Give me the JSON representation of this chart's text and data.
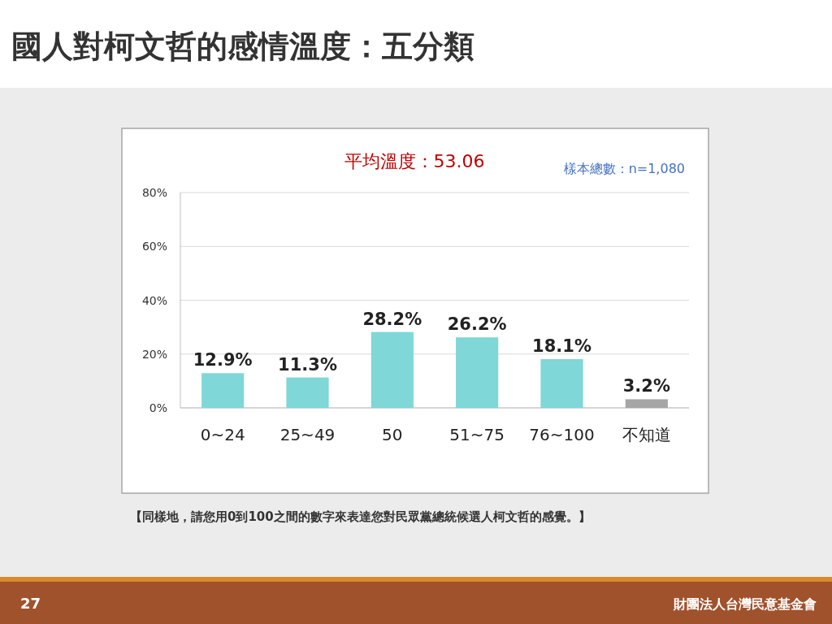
{
  "chart_data": {
    "type": "bar",
    "title": "國人對柯文哲的感情溫度：五分類",
    "subtitle": "平均溫度：53.06",
    "annotations": [
      "樣本總數：n=1,080",
      "【同樣地，請您用0到100之間的數字來表達您對民眾黨總統候選人柯文哲的感覺。】",
      "27",
      "財團法人台灣民意基金會"
    ],
    "categories": [
      "0~24",
      "25~49",
      "50",
      "51~75",
      "76~100",
      "不知道"
    ],
    "values": [
      12.9,
      11.3,
      28.2,
      26.2,
      18.1,
      3.2
    ],
    "colors": [
      "#7fd7d7",
      "#7fd7d7",
      "#7fd7d7",
      "#7fd7d7",
      "#7fd7d7",
      "#a6a6a6"
    ],
    "value_labels": [
      "12.9%",
      "11.3%",
      "28.2%",
      "26.2%",
      "18.1%",
      "3.2%"
    ],
    "ylim": [
      0,
      80
    ],
    "yticks": [
      {
        "value": 0,
        "label": "0%"
      },
      {
        "value": 20,
        "label": "20%"
      },
      {
        "value": 40,
        "label": "40%"
      },
      {
        "value": 60,
        "label": "60%"
      },
      {
        "value": 80,
        "label": "80%"
      }
    ],
    "grid": "y"
  }
}
